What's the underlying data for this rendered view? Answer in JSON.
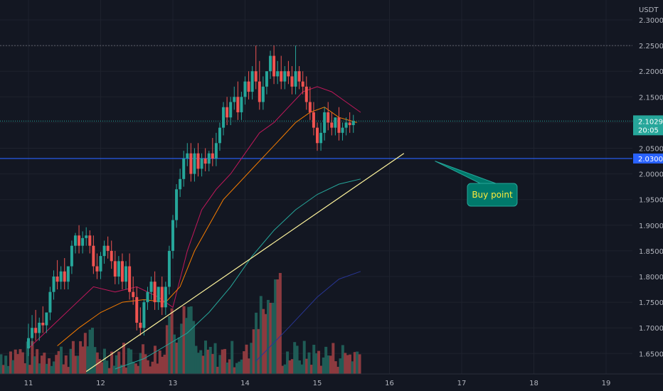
{
  "chart_data": {
    "type": "candlestick",
    "title": "",
    "currency": "USDT",
    "xlabel": "",
    "ylabel": "",
    "ylim": [
      1.615,
      2.33
    ],
    "xlim": [
      10.6,
      19.3
    ],
    "grid": true,
    "y_ticks": [
      "2.3000",
      "2.2500",
      "2.2000",
      "2.1500",
      "2.1000",
      "2.0500",
      "2.0000",
      "1.9500",
      "1.9000",
      "1.8500",
      "1.8000",
      "1.7500",
      "1.7000",
      "1.6500"
    ],
    "y_tick_values": [
      2.3,
      2.25,
      2.2,
      2.15,
      2.1,
      2.05,
      2.0,
      1.95,
      1.9,
      1.85,
      1.8,
      1.75,
      1.7,
      1.65
    ],
    "x_ticks": [
      "11",
      "12",
      "13",
      "14",
      "15",
      "16",
      "17",
      "18",
      "19"
    ],
    "x_tick_values": [
      11,
      12,
      13,
      14,
      15,
      16,
      17,
      18,
      19
    ],
    "last_price": {
      "value": 2.1029,
      "label": "2.1029",
      "countdown": "20:05"
    },
    "support_level": {
      "value": 2.03,
      "label": "2.0300"
    },
    "resistance_level": {
      "value": 2.25
    },
    "trendline": {
      "from": [
        11.8,
        1.615
      ],
      "to": [
        16.2,
        2.04
      ]
    },
    "annotation": {
      "text": "Buy point",
      "arrow_to": [
        16.65,
        2.025
      ]
    },
    "moving_averages": [
      {
        "color": "#c2185b",
        "points": [
          [
            11.0,
            1.66
          ],
          [
            11.3,
            1.7
          ],
          [
            11.6,
            1.74
          ],
          [
            11.9,
            1.78
          ],
          [
            12.2,
            1.77
          ],
          [
            12.5,
            1.78
          ],
          [
            12.8,
            1.76
          ],
          [
            13.0,
            1.74
          ],
          [
            13.2,
            1.85
          ],
          [
            13.4,
            1.93
          ],
          [
            13.6,
            1.97
          ],
          [
            13.8,
            2.0
          ],
          [
            14.0,
            2.04
          ],
          [
            14.2,
            2.08
          ],
          [
            14.4,
            2.1
          ],
          [
            14.6,
            2.13
          ],
          [
            14.8,
            2.16
          ],
          [
            15.0,
            2.17
          ],
          [
            15.2,
            2.16
          ],
          [
            15.4,
            2.14
          ],
          [
            15.6,
            2.12
          ]
        ]
      },
      {
        "color": "#f57c00",
        "points": [
          [
            11.4,
            1.665
          ],
          [
            11.7,
            1.7
          ],
          [
            12.0,
            1.73
          ],
          [
            12.3,
            1.75
          ],
          [
            12.6,
            1.755
          ],
          [
            12.9,
            1.75
          ],
          [
            13.1,
            1.78
          ],
          [
            13.3,
            1.85
          ],
          [
            13.5,
            1.9
          ],
          [
            13.7,
            1.95
          ],
          [
            13.9,
            1.98
          ],
          [
            14.1,
            2.01
          ],
          [
            14.3,
            2.04
          ],
          [
            14.5,
            2.07
          ],
          [
            14.7,
            2.1
          ],
          [
            14.9,
            2.12
          ],
          [
            15.1,
            2.13
          ],
          [
            15.3,
            2.11
          ],
          [
            15.55,
            2.1
          ]
        ]
      },
      {
        "color": "#26a69a",
        "points": [
          [
            12.2,
            1.62
          ],
          [
            12.6,
            1.64
          ],
          [
            12.9,
            1.665
          ],
          [
            13.2,
            1.69
          ],
          [
            13.5,
            1.73
          ],
          [
            13.8,
            1.78
          ],
          [
            14.1,
            1.84
          ],
          [
            14.4,
            1.89
          ],
          [
            14.7,
            1.93
          ],
          [
            15.0,
            1.96
          ],
          [
            15.3,
            1.98
          ],
          [
            15.6,
            1.99
          ]
        ]
      },
      {
        "color": "#283593",
        "points": [
          [
            14.15,
            1.635
          ],
          [
            14.6,
            1.7
          ],
          [
            15.0,
            1.76
          ],
          [
            15.3,
            1.795
          ],
          [
            15.6,
            1.81
          ]
        ]
      }
    ],
    "candles_source": [
      [
        11.0,
        1.66,
        1.708,
        1.68
      ],
      [
        11.05,
        1.68,
        1.725,
        1.7
      ],
      [
        11.1,
        1.7,
        1.735,
        1.69
      ],
      [
        11.15,
        1.69,
        1.72,
        1.71
      ],
      [
        11.2,
        1.71,
        1.742,
        1.705
      ],
      [
        11.25,
        1.705,
        1.73,
        1.73
      ],
      [
        11.3,
        1.73,
        1.78,
        1.77
      ],
      [
        11.35,
        1.77,
        1.812,
        1.8
      ],
      [
        11.4,
        1.8,
        1.832,
        1.79
      ],
      [
        11.45,
        1.79,
        1.82,
        1.81
      ],
      [
        11.5,
        1.81,
        1.836,
        1.79
      ],
      [
        11.55,
        1.79,
        1.815,
        1.82
      ],
      [
        11.6,
        1.82,
        1.87,
        1.86
      ],
      [
        11.65,
        1.86,
        1.885,
        1.88
      ],
      [
        11.7,
        1.88,
        1.9,
        1.86
      ],
      [
        11.75,
        1.86,
        1.888,
        1.875
      ],
      [
        11.8,
        1.875,
        1.896,
        1.88
      ],
      [
        11.85,
        1.88,
        1.89,
        1.86
      ],
      [
        11.9,
        1.86,
        1.88,
        1.82
      ],
      [
        11.95,
        1.82,
        1.845,
        1.81
      ],
      [
        12.0,
        1.81,
        1.848,
        1.84
      ],
      [
        12.05,
        1.84,
        1.87,
        1.86
      ],
      [
        12.1,
        1.86,
        1.878,
        1.85
      ],
      [
        12.15,
        1.85,
        1.87,
        1.83
      ],
      [
        12.2,
        1.83,
        1.85,
        1.8
      ],
      [
        12.25,
        1.8,
        1.84,
        1.83
      ],
      [
        12.3,
        1.83,
        1.845,
        1.79
      ],
      [
        12.35,
        1.79,
        1.83,
        1.82
      ],
      [
        12.4,
        1.82,
        1.845,
        1.77
      ],
      [
        12.45,
        1.77,
        1.8,
        1.76
      ],
      [
        12.5,
        1.76,
        1.78,
        1.71
      ],
      [
        12.55,
        1.71,
        1.74,
        1.7
      ],
      [
        12.6,
        1.7,
        1.755,
        1.75
      ],
      [
        12.65,
        1.75,
        1.78,
        1.77
      ],
      [
        12.7,
        1.77,
        1.8,
        1.79
      ],
      [
        12.75,
        1.79,
        1.81,
        1.75
      ],
      [
        12.8,
        1.75,
        1.78,
        1.78
      ],
      [
        12.85,
        1.78,
        1.8,
        1.74
      ],
      [
        12.9,
        1.74,
        1.79,
        1.78
      ],
      [
        12.95,
        1.78,
        1.86,
        1.85
      ],
      [
        13.0,
        1.85,
        1.92,
        1.91
      ],
      [
        13.05,
        1.91,
        1.98,
        1.97
      ],
      [
        13.1,
        1.97,
        2.01,
        1.99
      ],
      [
        13.15,
        1.99,
        2.045,
        2.03
      ],
      [
        13.2,
        2.03,
        2.06,
        2.04
      ],
      [
        13.25,
        2.04,
        2.06,
        2.0
      ],
      [
        13.3,
        2.0,
        2.05,
        2.04
      ],
      [
        13.35,
        2.04,
        2.06,
        2.01
      ],
      [
        13.4,
        2.01,
        2.04,
        2.03
      ],
      [
        13.45,
        2.03,
        2.05,
        2.02
      ],
      [
        13.5,
        2.02,
        2.045,
        2.04
      ],
      [
        13.55,
        2.04,
        2.07,
        2.03
      ],
      [
        13.6,
        2.03,
        2.08,
        2.06
      ],
      [
        13.65,
        2.06,
        2.1,
        2.09
      ],
      [
        13.7,
        2.09,
        2.14,
        2.13
      ],
      [
        13.75,
        2.13,
        2.15,
        2.11
      ],
      [
        13.8,
        2.11,
        2.15,
        2.14
      ],
      [
        13.85,
        2.14,
        2.17,
        2.15
      ],
      [
        13.9,
        2.15,
        2.18,
        2.12
      ],
      [
        13.95,
        2.12,
        2.16,
        2.15
      ],
      [
        14.0,
        2.15,
        2.19,
        2.18
      ],
      [
        14.05,
        2.18,
        2.2,
        2.16
      ],
      [
        14.1,
        2.16,
        2.21,
        2.2
      ],
      [
        14.15,
        2.2,
        2.25,
        2.18
      ],
      [
        14.2,
        2.18,
        2.22,
        2.14
      ],
      [
        14.25,
        2.14,
        2.19,
        2.17
      ],
      [
        14.3,
        2.17,
        2.2,
        2.2
      ],
      [
        14.35,
        2.2,
        2.24,
        2.23
      ],
      [
        14.4,
        2.23,
        2.25,
        2.19
      ],
      [
        14.45,
        2.19,
        2.22,
        2.2
      ],
      [
        14.5,
        2.2,
        2.23,
        2.18
      ],
      [
        14.55,
        2.18,
        2.21,
        2.2
      ],
      [
        14.6,
        2.2,
        2.22,
        2.19
      ],
      [
        14.65,
        2.19,
        2.21,
        2.17
      ],
      [
        14.7,
        2.17,
        2.25,
        2.2
      ],
      [
        14.75,
        2.2,
        2.21,
        2.18
      ],
      [
        14.8,
        2.18,
        2.2,
        2.17
      ],
      [
        14.85,
        2.17,
        2.19,
        2.14
      ],
      [
        14.9,
        2.14,
        2.17,
        2.12
      ],
      [
        14.95,
        2.12,
        2.14,
        2.09
      ],
      [
        15.0,
        2.09,
        2.1,
        2.06
      ],
      [
        15.05,
        2.06,
        2.1,
        2.08
      ],
      [
        15.1,
        2.08,
        2.13,
        2.12
      ],
      [
        15.15,
        2.12,
        2.14,
        2.1
      ],
      [
        15.2,
        2.1,
        2.12,
        2.09
      ],
      [
        15.25,
        2.09,
        2.11,
        2.11
      ],
      [
        15.3,
        2.11,
        2.13,
        2.08
      ],
      [
        15.35,
        2.08,
        2.1,
        2.09
      ],
      [
        15.4,
        2.09,
        2.11,
        2.1
      ],
      [
        15.45,
        2.1,
        2.12,
        2.095
      ],
      [
        15.5,
        2.095,
        2.115,
        2.103
      ]
    ],
    "volume_bars_count": 150
  }
}
